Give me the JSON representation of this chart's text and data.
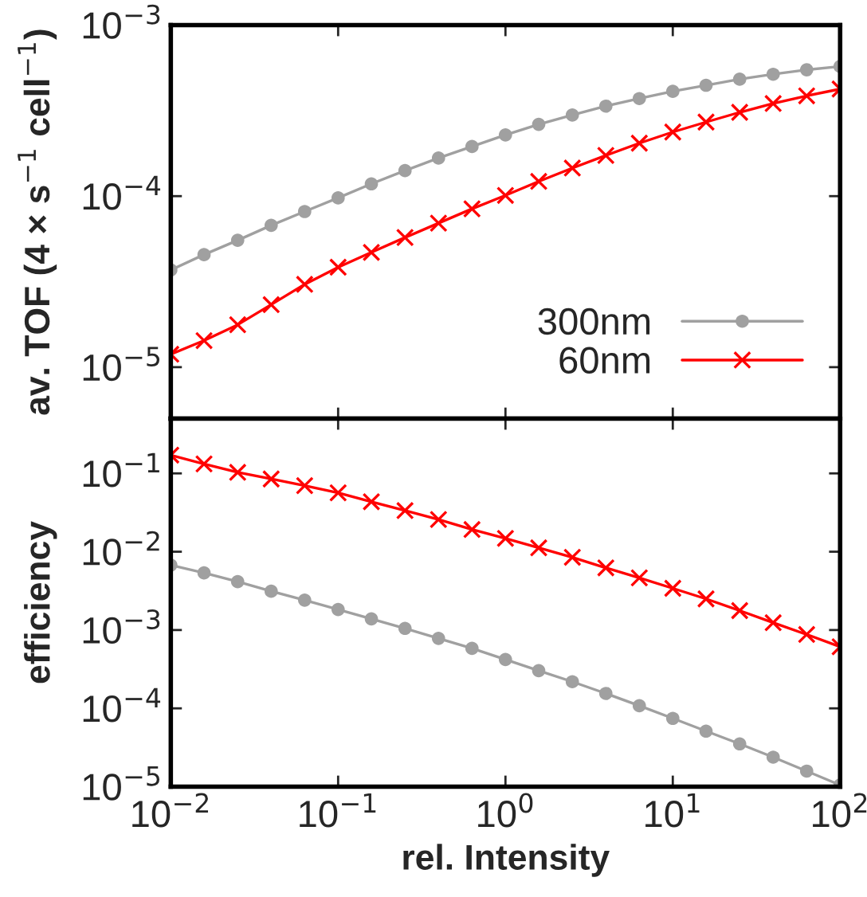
{
  "chart_data": [
    {
      "type": "line",
      "ylabel": "av. TOF (4 × s$^{−1}$ cell$^{−1}$)",
      "log": "xy",
      "legend": "bottom right",
      "tick_labels": "y",
      "x": [
        0.01,
        0.0158,
        0.0251,
        0.0398,
        0.0631,
        0.1,
        0.158,
        0.251,
        0.398,
        0.631,
        1,
        1.58,
        2.51,
        3.98,
        6.31,
        10,
        15.8,
        25.1,
        39.8,
        63.1,
        100
      ],
      "xlim": [
        0.01,
        100
      ],
      "xticks": [
        {
          "value": 0.01,
          "label": null
        },
        {
          "value": 0.1,
          "label": null
        },
        {
          "value": 1,
          "label": null
        },
        {
          "value": 10,
          "label": null
        },
        {
          "value": 100,
          "label": null
        }
      ],
      "ylim": [
        5e-06,
        0.001
      ],
      "yticks": [
        {
          "value": 1e-05,
          "label": "10$^{−5}$"
        },
        {
          "value": 0.0001,
          "label": "10$^{−4}$"
        },
        {
          "value": 0.001,
          "label": "10$^{−3}$"
        }
      ],
      "series": [
        {
          "name": "300nm",
          "color": "#a0a0a0",
          "marker": "circle",
          "values": [
            3.7e-05,
            4.55e-05,
            5.52e-05,
            6.75e-05,
            8.13e-05,
            9.77e-05,
            0.000118,
            0.000141,
            0.000167,
            0.000195,
            0.000228,
            0.000263,
            0.000298,
            0.000336,
            0.000372,
            0.00041,
            0.000445,
            0.000483,
            0.000516,
            0.000548,
            0.000573
          ]
        },
        {
          "name": "60nm",
          "color": "#ff0000",
          "marker": "cross",
          "values": [
            1.19e-05,
            1.43e-05,
            1.77e-05,
            2.32e-05,
            3.05e-05,
            3.84e-05,
            4.69e-05,
            5.73e-05,
            6.95e-05,
            8.43e-05,
            0.000101,
            0.000122,
            0.000146,
            0.000173,
            0.000204,
            0.000237,
            0.000271,
            0.000309,
            0.000348,
            0.000386,
            0.000423
          ]
        }
      ]
    },
    {
      "type": "line",
      "xlabel": "rel. Intensity",
      "ylabel": "efficiency",
      "log": "xy",
      "x": [
        0.01,
        0.0158,
        0.0251,
        0.0398,
        0.0631,
        0.1,
        0.158,
        0.251,
        0.398,
        0.631,
        1,
        1.58,
        2.51,
        3.98,
        6.31,
        10,
        15.8,
        25.1,
        39.8,
        63.1,
        100
      ],
      "xlim": [
        0.01,
        100
      ],
      "xticks": [
        {
          "value": 0.01,
          "label": "10$^{−2}$"
        },
        {
          "value": 0.1,
          "label": "10$^{−1}$"
        },
        {
          "value": 1,
          "label": "10$^{0}$"
        },
        {
          "value": 10,
          "label": "10$^{1}$"
        },
        {
          "value": 100,
          "label": "10$^{2}$"
        }
      ],
      "ylim": [
        1e-05,
        0.5
      ],
      "yticks": [
        {
          "value": 1e-05,
          "label": "10$^{−5}$"
        },
        {
          "value": 0.0001,
          "label": "10$^{−4}$"
        },
        {
          "value": 0.001,
          "label": "10$^{−3}$"
        },
        {
          "value": 0.01,
          "label": "10$^{−2}$"
        },
        {
          "value": 0.1,
          "label": "10$^{−1}$"
        }
      ],
      "series": [
        {
          "color": "#a0a0a0",
          "marker": "circle",
          "values": [
            0.00676,
            0.00537,
            0.00414,
            0.00313,
            0.00241,
            0.00183,
            0.00139,
            0.00105,
            0.000783,
            0.000583,
            0.000421,
            0.000303,
            0.000219,
            0.000155,
            0.000108,
            7.45e-05,
            5.12e-05,
            3.52e-05,
            2.38e-05,
            1.58e-05,
            1.05e-05
          ]
        },
        {
          "color": "#ff0000",
          "marker": "cross",
          "values": [
            0.171,
            0.132,
            0.103,
            0.0849,
            0.0698,
            0.0565,
            0.0435,
            0.0335,
            0.0258,
            0.0192,
            0.0148,
            0.0112,
            0.00849,
            0.00622,
            0.00464,
            0.00341,
            0.0025,
            0.00177,
            0.00124,
            0.000877,
            0.000612
          ]
        }
      ]
    }
  ]
}
